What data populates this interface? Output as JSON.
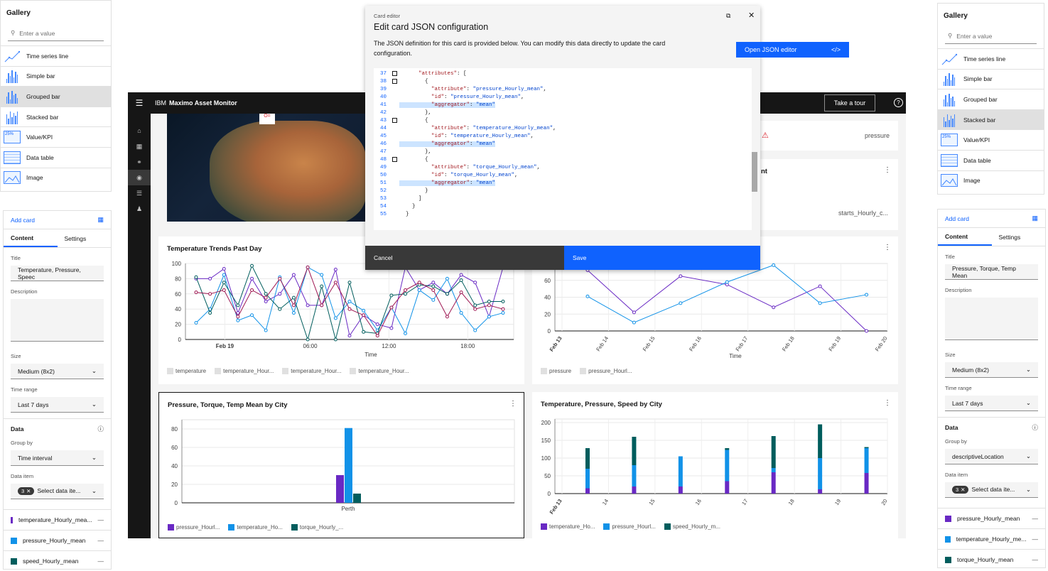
{
  "gallery_left": {
    "title": "Gallery",
    "search_placeholder": "Enter a value",
    "items": [
      "Time series line",
      "Simple bar",
      "Grouped bar",
      "Stacked bar",
      "Value/KPI",
      "Data table",
      "Image"
    ],
    "selected": "Grouped bar"
  },
  "gallery_right": {
    "title": "Gallery",
    "search_placeholder": "Enter a value",
    "items": [
      "Time series line",
      "Simple bar",
      "Grouped bar",
      "Stacked bar",
      "Value/KPI",
      "Data table",
      "Image"
    ],
    "selected": "Stacked bar"
  },
  "editor_left": {
    "add_card": "Add card",
    "tabs": [
      "Content",
      "Settings"
    ],
    "title_label": "Title",
    "title_value": "Temperature, Pressure, Speec",
    "description_label": "Description",
    "size_label": "Size",
    "size_value": "Medium (8x2)",
    "time_range_label": "Time range",
    "time_range_value": "Last 7 days",
    "data_label": "Data",
    "group_by_label": "Group by",
    "group_by_value": "Time interval",
    "data_item_label": "Data item",
    "data_item_count": "3",
    "data_item_value": "Select data ite...",
    "items": [
      {
        "label": "temperature_Hourly_mea...",
        "color": "#6929c4"
      },
      {
        "label": "pressure_Hourly_mean",
        "color": "#1192e8"
      },
      {
        "label": "speed_Hourly_mean",
        "color": "#005d5d"
      }
    ]
  },
  "editor_right": {
    "add_card": "Add card",
    "tabs": [
      "Content",
      "Settings"
    ],
    "title_label": "Title",
    "title_value": "Pressure, Torque, Temp Mean",
    "description_label": "Description",
    "size_label": "Size",
    "size_value": "Medium (8x2)",
    "time_range_label": "Time range",
    "time_range_value": "Last 7 days",
    "data_label": "Data",
    "group_by_label": "Group by",
    "group_by_value": "descriptiveLocation",
    "data_item_label": "Data item",
    "data_item_count": "3",
    "data_item_value": "Select data ite...",
    "items": [
      {
        "label": "pressure_Hourly_mean",
        "color": "#6929c4"
      },
      {
        "label": "temperature_Hourly_me...",
        "color": "#1192e8"
      },
      {
        "label": "torque_Hourly_mean",
        "color": "#005d5d"
      }
    ]
  },
  "app": {
    "brand_ibm": "IBM",
    "brand_name": "Maximo Asset Monitor",
    "take_tour": "Take a tour"
  },
  "partial_cards": {
    "pressure_label": "pressure",
    "count_title_fragment": "nt",
    "starts_label": "starts_Hourly_c..."
  },
  "modal": {
    "eyebrow": "Card editor",
    "title": "Edit card JSON configuration",
    "description": "The JSON definition for this card is provided below. You can modify this data directly to update the card configuration.",
    "open_json": "Open JSON editor",
    "cancel": "Cancel",
    "save": "Save",
    "code_lines": [
      {
        "n": "37",
        "fold": true,
        "text": "      \"attributes\": [",
        "hl": false
      },
      {
        "n": "38",
        "fold": true,
        "text": "        {",
        "hl": false
      },
      {
        "n": "39",
        "fold": false,
        "text": "          \"attribute\": \"pressure_Hourly_mean\",",
        "hl": false
      },
      {
        "n": "40",
        "fold": false,
        "text": "          \"id\": \"pressure_Hourly_mean\",",
        "hl": false
      },
      {
        "n": "41",
        "fold": false,
        "text": "          \"aggregator\": \"mean\"",
        "hl": true
      },
      {
        "n": "42",
        "fold": false,
        "text": "        },",
        "hl": false
      },
      {
        "n": "43",
        "fold": true,
        "text": "        {",
        "hl": false
      },
      {
        "n": "44",
        "fold": false,
        "text": "          \"attribute\": \"temperature_Hourly_mean\",",
        "hl": false
      },
      {
        "n": "45",
        "fold": false,
        "text": "          \"id\": \"temperature_Hourly_mean\",",
        "hl": false
      },
      {
        "n": "46",
        "fold": false,
        "text": "          \"aggregator\": \"mean\"",
        "hl": true
      },
      {
        "n": "47",
        "fold": false,
        "text": "        },",
        "hl": false
      },
      {
        "n": "48",
        "fold": true,
        "text": "        {",
        "hl": false
      },
      {
        "n": "49",
        "fold": false,
        "text": "          \"attribute\": \"torque_Hourly_mean\",",
        "hl": false
      },
      {
        "n": "50",
        "fold": false,
        "text": "          \"id\": \"torque_Hourly_mean\",",
        "hl": false
      },
      {
        "n": "51",
        "fold": false,
        "text": "          \"aggregator\": \"mean\"",
        "hl": true
      },
      {
        "n": "52",
        "fold": false,
        "text": "        }",
        "hl": false
      },
      {
        "n": "53",
        "fold": false,
        "text": "      ]",
        "hl": false
      },
      {
        "n": "54",
        "fold": false,
        "text": "    }",
        "hl": false
      },
      {
        "n": "55",
        "fold": false,
        "text": "  }",
        "hl": false
      }
    ]
  },
  "chart_data": [
    {
      "id": "temp_trends",
      "type": "line",
      "title": "Temperature Trends Past Day",
      "xlabel": "Time",
      "x_ticks": [
        "Feb 19",
        "06:00",
        "12:00",
        "18:00"
      ],
      "ylim": [
        0,
        100
      ],
      "y_ticks": [
        0,
        20,
        40,
        60,
        80,
        100
      ],
      "legend": [
        "temperature",
        "temperature_Hour...",
        "temperature_Hour...",
        "temperature_Hour..."
      ],
      "series": [
        {
          "color": "#6929c4",
          "values": [
            80,
            80,
            93,
            35,
            80,
            50,
            60,
            85,
            45,
            45,
            92,
            5,
            32,
            20,
            15,
            95,
            65,
            75,
            60,
            85,
            75,
            30,
            95
          ]
        },
        {
          "color": "#1192e8",
          "values": [
            22,
            40,
            85,
            25,
            32,
            12,
            82,
            35,
            95,
            85,
            28,
            50,
            38,
            12,
            42,
            8,
            65,
            52,
            80,
            35,
            12,
            30,
            35
          ]
        },
        {
          "color": "#005d5d",
          "values": [
            82,
            35,
            75,
            45,
            97,
            60,
            40,
            55,
            0,
            70,
            0,
            75,
            10,
            8,
            58,
            60,
            72,
            70,
            60,
            78,
            45,
            50,
            50
          ]
        },
        {
          "color": "#9f1853",
          "values": [
            62,
            60,
            65,
            30,
            65,
            55,
            80,
            45,
            95,
            45,
            75,
            40,
            32,
            5,
            42,
            65,
            75,
            65,
            30,
            62,
            40,
            45,
            40
          ]
        }
      ]
    },
    {
      "id": "pressure_line",
      "type": "line",
      "xlabel": "Time",
      "x_ticks": [
        "Feb 13",
        "Feb 14",
        "Feb 15",
        "Feb 16",
        "Feb 17",
        "Feb 18",
        "Feb 19",
        "Feb 20"
      ],
      "y_ticks": [
        0,
        20,
        40,
        60
      ],
      "legend": [
        "pressure",
        "pressure_Hourl..."
      ],
      "series": [
        {
          "color": "#6929c4",
          "values": [
            72,
            22,
            65,
            55,
            28,
            53,
            0
          ]
        },
        {
          "color": "#1192e8",
          "values": [
            41,
            10,
            33,
            58,
            78,
            33,
            43
          ]
        }
      ]
    },
    {
      "id": "by_city",
      "type": "bar",
      "title": "Pressure, Torque, Temp Mean by City",
      "categories": [
        "Perth"
      ],
      "y_ticks": [
        0,
        20,
        40,
        60,
        80
      ],
      "legend": [
        "pressure_Hourl...",
        "temperature_Ho...",
        "torque_Hourly_..."
      ],
      "series": [
        {
          "color": "#6929c4",
          "values": [
            30
          ]
        },
        {
          "color": "#1192e8",
          "values": [
            81
          ]
        },
        {
          "color": "#005d5d",
          "values": [
            10
          ]
        }
      ]
    },
    {
      "id": "stacked_city",
      "type": "bar",
      "title": "Temperature, Pressure, Speed by City",
      "x_ticks": [
        "Feb 13",
        "14",
        "15",
        "16",
        "17",
        "18",
        "19",
        "20"
      ],
      "y_ticks": [
        0,
        50,
        100,
        150,
        200
      ],
      "legend": [
        "temperature_Ho...",
        "pressure_Hourl...",
        "speed_Hourly_m..."
      ],
      "stacks": [
        {
          "temperature": 15,
          "pressure": 55,
          "speed": 58
        },
        {
          "temperature": 20,
          "pressure": 60,
          "speed": 80
        },
        {
          "temperature": 20,
          "pressure": 85,
          "speed": 0
        },
        {
          "temperature": 35,
          "pressure": 88,
          "speed": 5
        },
        {
          "temperature": 60,
          "pressure": 12,
          "speed": 90
        },
        {
          "temperature": 12,
          "pressure": 88,
          "speed": 95
        },
        {
          "temperature": 58,
          "pressure": 70,
          "speed": 3
        }
      ]
    }
  ]
}
